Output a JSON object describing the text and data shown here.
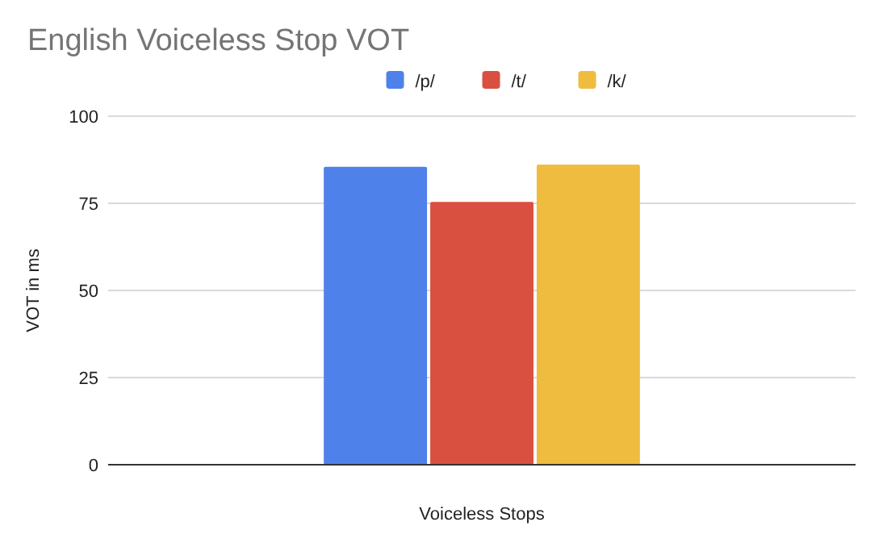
{
  "chart_data": {
    "type": "bar",
    "title": "English Voiceless Stop VOT",
    "xlabel": "Voiceless Stops",
    "ylabel": "VOT in ms",
    "categories": [
      null
    ],
    "series": [
      {
        "name": "/p/",
        "color": "#4f81ea",
        "values": [
          85.5
        ]
      },
      {
        "name": "/t/",
        "color": "#d95040",
        "values": [
          75.4
        ]
      },
      {
        "name": "/k/",
        "color": "#f0bc40",
        "values": [
          86.1
        ]
      }
    ],
    "ylim": [
      0,
      100
    ],
    "yticks": [
      0,
      25,
      50,
      75,
      100
    ],
    "grid": "y",
    "legend": "top"
  }
}
